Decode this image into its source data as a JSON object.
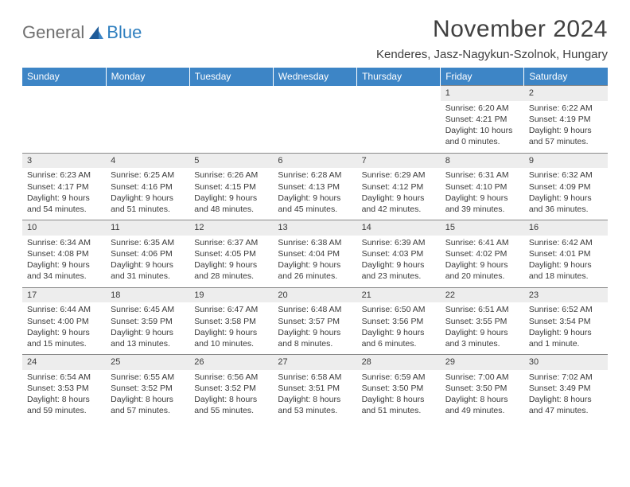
{
  "logo": {
    "general": "General",
    "blue": "Blue"
  },
  "title": "November 2024",
  "location": "Kenderes, Jasz-Nagykun-Szolnok, Hungary",
  "colors": {
    "header_bg": "#3d85c6",
    "header_fg": "#ffffff",
    "daynum_bg": "#ededed",
    "border": "#8a8a8a",
    "text": "#3a3a3a",
    "logo_gray": "#6f6f6f",
    "logo_blue": "#2f7fbf"
  },
  "typography": {
    "title_fontsize": 30,
    "location_fontsize": 15,
    "dayheader_fontsize": 12,
    "cell_fontsize": 10.5
  },
  "days_of_week": [
    "Sunday",
    "Monday",
    "Tuesday",
    "Wednesday",
    "Thursday",
    "Friday",
    "Saturday"
  ],
  "weeks": [
    [
      null,
      null,
      null,
      null,
      null,
      {
        "n": "1",
        "sr": "Sunrise: 6:20 AM",
        "ss": "Sunset: 4:21 PM",
        "d1": "Daylight: 10 hours",
        "d2": "and 0 minutes."
      },
      {
        "n": "2",
        "sr": "Sunrise: 6:22 AM",
        "ss": "Sunset: 4:19 PM",
        "d1": "Daylight: 9 hours",
        "d2": "and 57 minutes."
      }
    ],
    [
      {
        "n": "3",
        "sr": "Sunrise: 6:23 AM",
        "ss": "Sunset: 4:17 PM",
        "d1": "Daylight: 9 hours",
        "d2": "and 54 minutes."
      },
      {
        "n": "4",
        "sr": "Sunrise: 6:25 AM",
        "ss": "Sunset: 4:16 PM",
        "d1": "Daylight: 9 hours",
        "d2": "and 51 minutes."
      },
      {
        "n": "5",
        "sr": "Sunrise: 6:26 AM",
        "ss": "Sunset: 4:15 PM",
        "d1": "Daylight: 9 hours",
        "d2": "and 48 minutes."
      },
      {
        "n": "6",
        "sr": "Sunrise: 6:28 AM",
        "ss": "Sunset: 4:13 PM",
        "d1": "Daylight: 9 hours",
        "d2": "and 45 minutes."
      },
      {
        "n": "7",
        "sr": "Sunrise: 6:29 AM",
        "ss": "Sunset: 4:12 PM",
        "d1": "Daylight: 9 hours",
        "d2": "and 42 minutes."
      },
      {
        "n": "8",
        "sr": "Sunrise: 6:31 AM",
        "ss": "Sunset: 4:10 PM",
        "d1": "Daylight: 9 hours",
        "d2": "and 39 minutes."
      },
      {
        "n": "9",
        "sr": "Sunrise: 6:32 AM",
        "ss": "Sunset: 4:09 PM",
        "d1": "Daylight: 9 hours",
        "d2": "and 36 minutes."
      }
    ],
    [
      {
        "n": "10",
        "sr": "Sunrise: 6:34 AM",
        "ss": "Sunset: 4:08 PM",
        "d1": "Daylight: 9 hours",
        "d2": "and 34 minutes."
      },
      {
        "n": "11",
        "sr": "Sunrise: 6:35 AM",
        "ss": "Sunset: 4:06 PM",
        "d1": "Daylight: 9 hours",
        "d2": "and 31 minutes."
      },
      {
        "n": "12",
        "sr": "Sunrise: 6:37 AM",
        "ss": "Sunset: 4:05 PM",
        "d1": "Daylight: 9 hours",
        "d2": "and 28 minutes."
      },
      {
        "n": "13",
        "sr": "Sunrise: 6:38 AM",
        "ss": "Sunset: 4:04 PM",
        "d1": "Daylight: 9 hours",
        "d2": "and 26 minutes."
      },
      {
        "n": "14",
        "sr": "Sunrise: 6:39 AM",
        "ss": "Sunset: 4:03 PM",
        "d1": "Daylight: 9 hours",
        "d2": "and 23 minutes."
      },
      {
        "n": "15",
        "sr": "Sunrise: 6:41 AM",
        "ss": "Sunset: 4:02 PM",
        "d1": "Daylight: 9 hours",
        "d2": "and 20 minutes."
      },
      {
        "n": "16",
        "sr": "Sunrise: 6:42 AM",
        "ss": "Sunset: 4:01 PM",
        "d1": "Daylight: 9 hours",
        "d2": "and 18 minutes."
      }
    ],
    [
      {
        "n": "17",
        "sr": "Sunrise: 6:44 AM",
        "ss": "Sunset: 4:00 PM",
        "d1": "Daylight: 9 hours",
        "d2": "and 15 minutes."
      },
      {
        "n": "18",
        "sr": "Sunrise: 6:45 AM",
        "ss": "Sunset: 3:59 PM",
        "d1": "Daylight: 9 hours",
        "d2": "and 13 minutes."
      },
      {
        "n": "19",
        "sr": "Sunrise: 6:47 AM",
        "ss": "Sunset: 3:58 PM",
        "d1": "Daylight: 9 hours",
        "d2": "and 10 minutes."
      },
      {
        "n": "20",
        "sr": "Sunrise: 6:48 AM",
        "ss": "Sunset: 3:57 PM",
        "d1": "Daylight: 9 hours",
        "d2": "and 8 minutes."
      },
      {
        "n": "21",
        "sr": "Sunrise: 6:50 AM",
        "ss": "Sunset: 3:56 PM",
        "d1": "Daylight: 9 hours",
        "d2": "and 6 minutes."
      },
      {
        "n": "22",
        "sr": "Sunrise: 6:51 AM",
        "ss": "Sunset: 3:55 PM",
        "d1": "Daylight: 9 hours",
        "d2": "and 3 minutes."
      },
      {
        "n": "23",
        "sr": "Sunrise: 6:52 AM",
        "ss": "Sunset: 3:54 PM",
        "d1": "Daylight: 9 hours",
        "d2": "and 1 minute."
      }
    ],
    [
      {
        "n": "24",
        "sr": "Sunrise: 6:54 AM",
        "ss": "Sunset: 3:53 PM",
        "d1": "Daylight: 8 hours",
        "d2": "and 59 minutes."
      },
      {
        "n": "25",
        "sr": "Sunrise: 6:55 AM",
        "ss": "Sunset: 3:52 PM",
        "d1": "Daylight: 8 hours",
        "d2": "and 57 minutes."
      },
      {
        "n": "26",
        "sr": "Sunrise: 6:56 AM",
        "ss": "Sunset: 3:52 PM",
        "d1": "Daylight: 8 hours",
        "d2": "and 55 minutes."
      },
      {
        "n": "27",
        "sr": "Sunrise: 6:58 AM",
        "ss": "Sunset: 3:51 PM",
        "d1": "Daylight: 8 hours",
        "d2": "and 53 minutes."
      },
      {
        "n": "28",
        "sr": "Sunrise: 6:59 AM",
        "ss": "Sunset: 3:50 PM",
        "d1": "Daylight: 8 hours",
        "d2": "and 51 minutes."
      },
      {
        "n": "29",
        "sr": "Sunrise: 7:00 AM",
        "ss": "Sunset: 3:50 PM",
        "d1": "Daylight: 8 hours",
        "d2": "and 49 minutes."
      },
      {
        "n": "30",
        "sr": "Sunrise: 7:02 AM",
        "ss": "Sunset: 3:49 PM",
        "d1": "Daylight: 8 hours",
        "d2": "and 47 minutes."
      }
    ]
  ]
}
